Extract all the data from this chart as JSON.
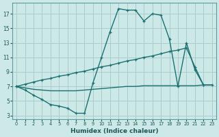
{
  "xlabel": "Humidex (Indice chaleur)",
  "bg_color": "#cce9e8",
  "grid_color": "#aacccc",
  "line_color": "#1a7070",
  "xlim": [
    -0.5,
    23.5
  ],
  "ylim": [
    2.5,
    18.5
  ],
  "xticks": [
    0,
    1,
    2,
    3,
    4,
    5,
    6,
    7,
    8,
    9,
    10,
    11,
    12,
    13,
    14,
    15,
    16,
    17,
    18,
    19,
    20,
    21,
    22,
    23
  ],
  "yticks": [
    3,
    5,
    7,
    9,
    11,
    13,
    15,
    17
  ],
  "curve1_x": [
    0,
    1,
    2,
    3,
    4,
    5,
    6,
    7,
    8,
    9,
    10,
    11,
    12,
    13,
    14,
    15,
    16,
    17,
    18,
    19,
    20,
    21,
    22
  ],
  "curve1_y": [
    7.0,
    6.5,
    5.8,
    5.2,
    4.5,
    4.3,
    4.0,
    3.3,
    3.3,
    7.5,
    11.0,
    14.5,
    17.7,
    17.5,
    17.5,
    16.0,
    17.0,
    16.8,
    13.5,
    7.0,
    13.0,
    9.3,
    7.2
  ],
  "curve2_x": [
    0,
    1,
    2,
    3,
    4,
    5,
    6,
    7,
    8,
    9,
    10,
    11,
    12,
    13,
    14,
    15,
    16,
    17,
    18,
    19,
    20,
    21,
    22,
    23
  ],
  "curve2_y": [
    7.0,
    7.3,
    7.6,
    7.9,
    8.1,
    8.4,
    8.6,
    8.9,
    9.1,
    9.4,
    9.7,
    9.9,
    10.2,
    10.5,
    10.7,
    11.0,
    11.2,
    11.5,
    11.8,
    12.0,
    12.3,
    9.7,
    7.2,
    7.2
  ],
  "curve3_x": [
    0,
    1,
    2,
    3,
    4,
    5,
    6,
    7,
    8,
    9,
    10,
    11,
    12,
    13,
    14,
    15,
    16,
    17,
    18,
    19,
    20,
    21,
    22,
    23
  ],
  "curve3_y": [
    7.0,
    6.8,
    6.6,
    6.5,
    6.4,
    6.4,
    6.4,
    6.4,
    6.5,
    6.6,
    6.7,
    6.8,
    6.9,
    7.0,
    7.0,
    7.1,
    7.1,
    7.1,
    7.1,
    7.1,
    7.1,
    7.1,
    7.2,
    7.2
  ]
}
